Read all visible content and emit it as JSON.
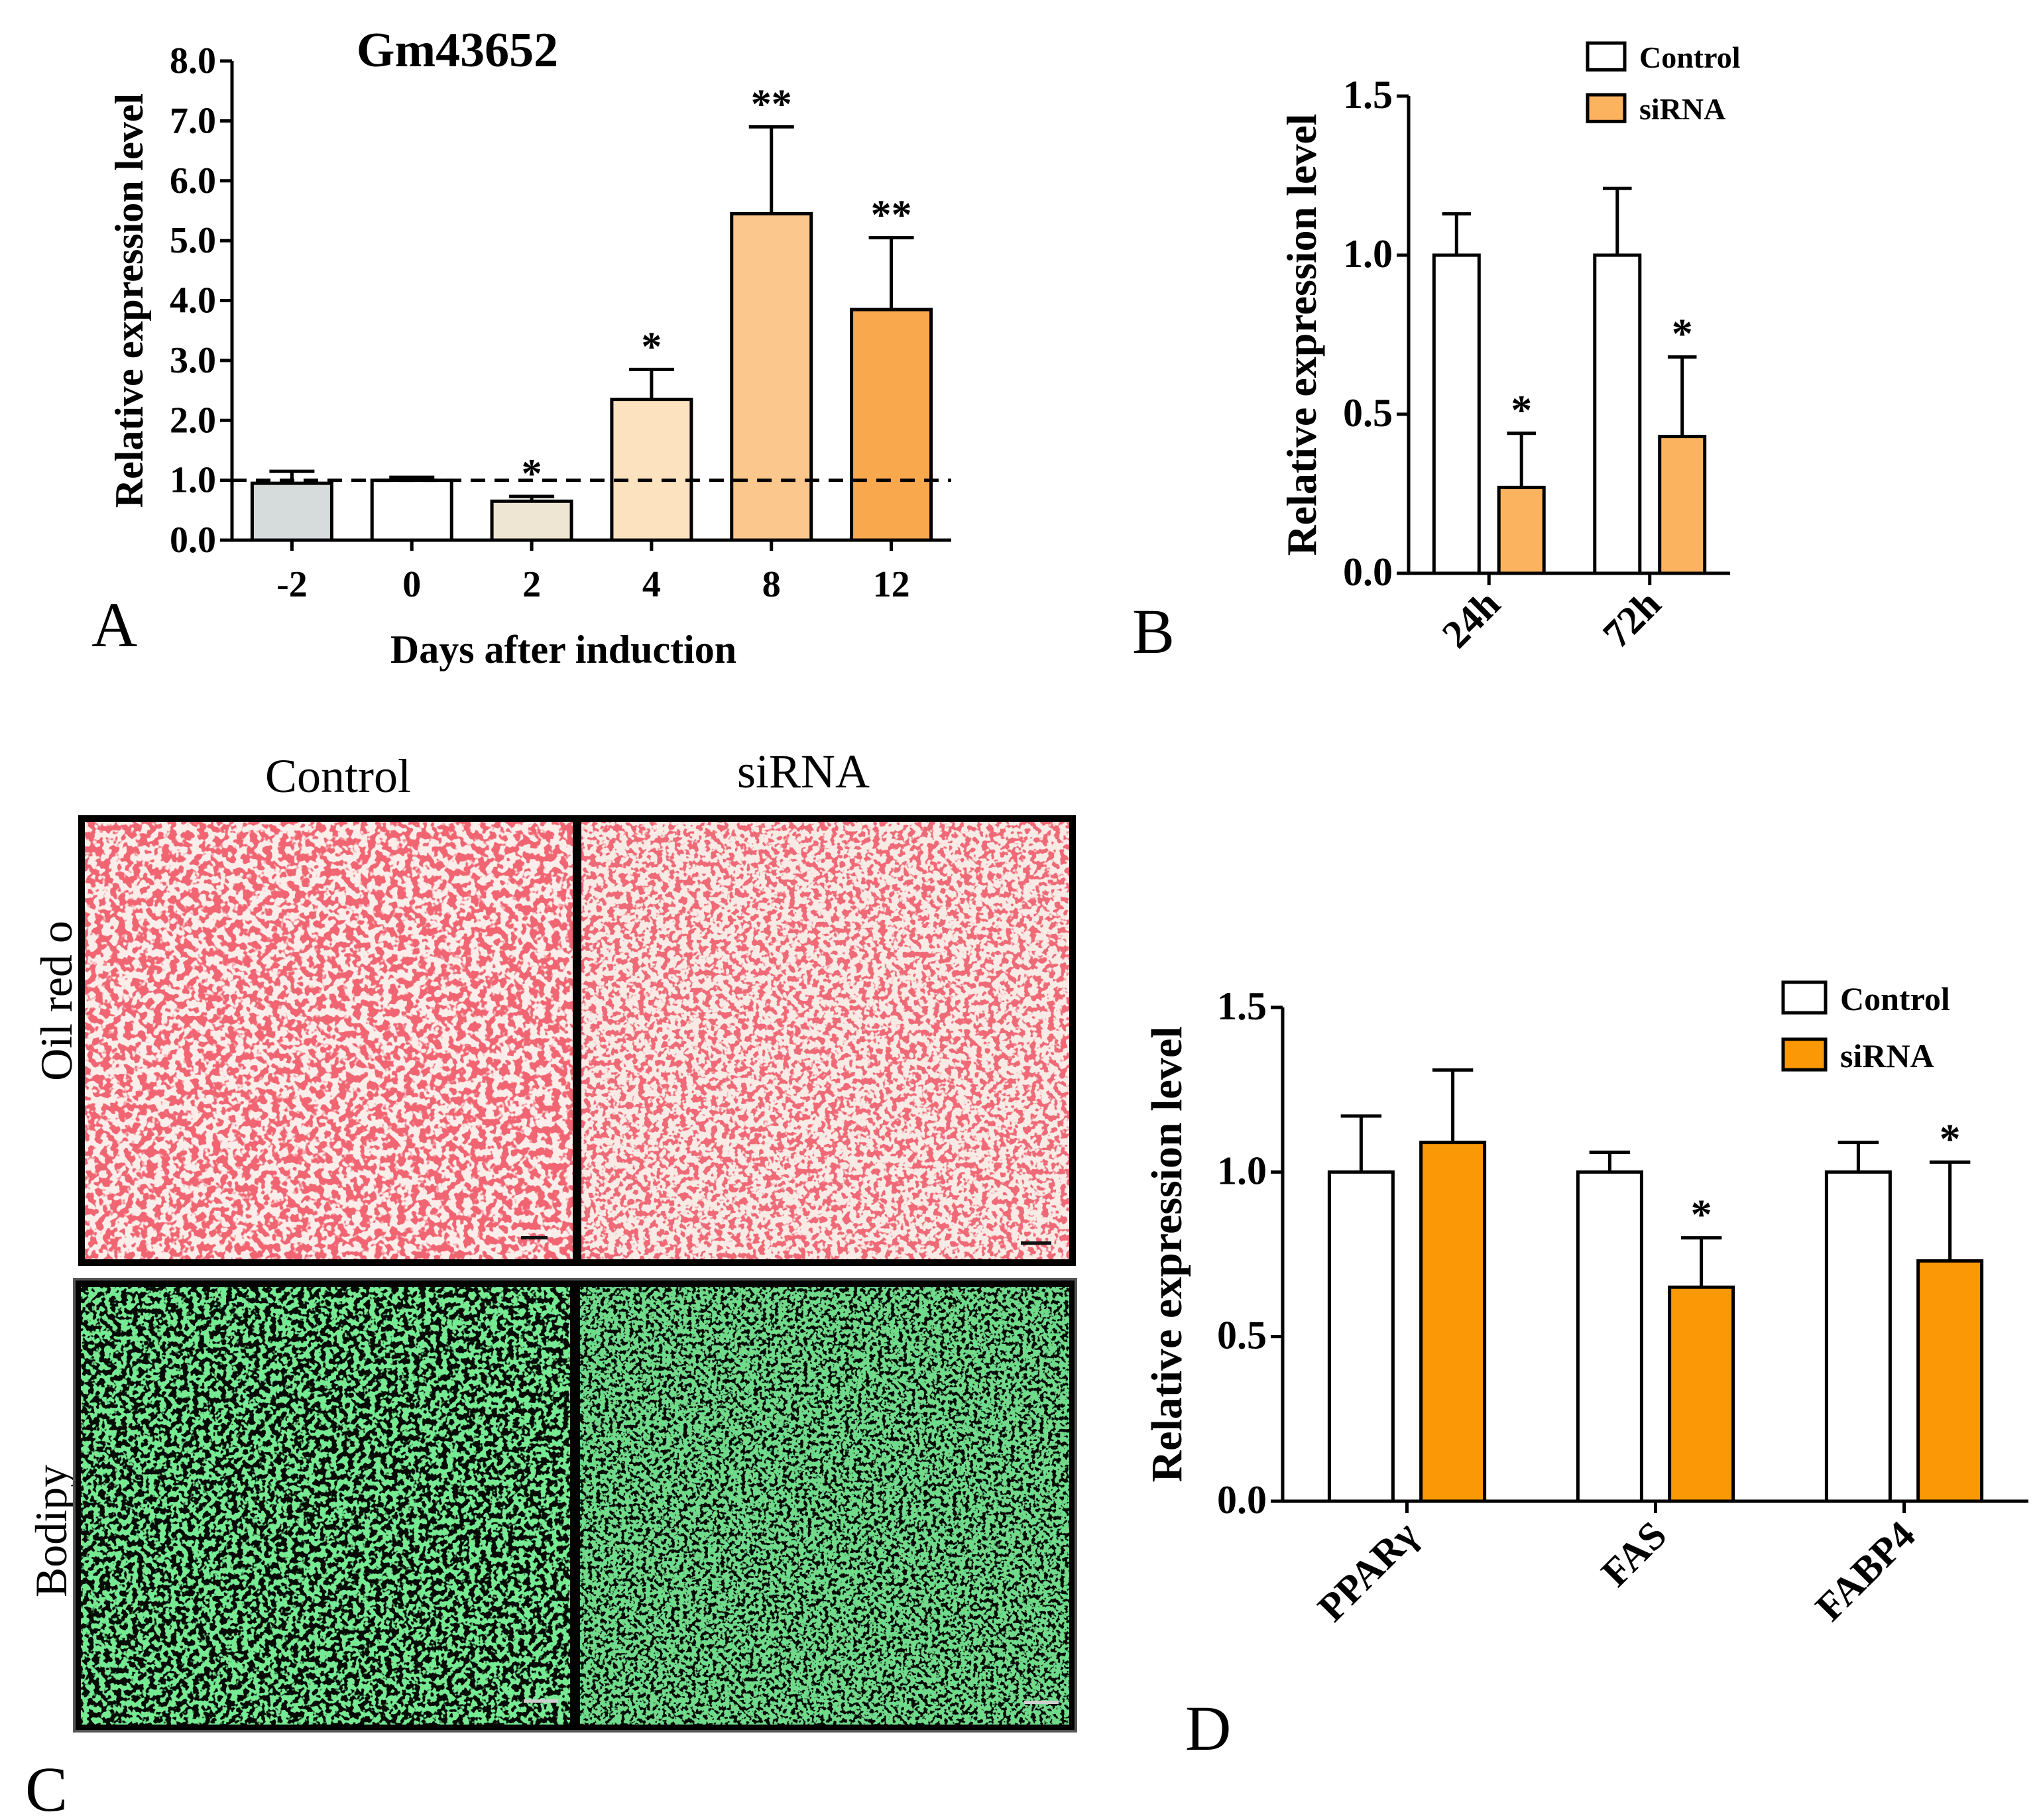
{
  "panels": {
    "A": {
      "letter": "A"
    },
    "B": {
      "letter": "B"
    },
    "C": {
      "letter": "C"
    },
    "D": {
      "letter": "D"
    }
  },
  "micrographs": {
    "col_headers": [
      "Control",
      "siRNA"
    ],
    "row_labels": [
      "Oil red o",
      "Bodipy"
    ],
    "colors": {
      "oil_bg": "#fbeeea",
      "oil_spot": "#e0202c",
      "oil_spot2": "#f06070",
      "bodipy_bg": "#060b06",
      "bodipy_spot": "#2ed14a"
    }
  },
  "chart_data": [
    {
      "type": "bar",
      "title": "Gm43652",
      "xlabel": "Days after induction",
      "ylabel": "Relative expression level",
      "categories": [
        "-2",
        "0",
        "2",
        "4",
        "8",
        "12"
      ],
      "values": [
        0.95,
        1.0,
        0.65,
        2.35,
        5.45,
        3.85
      ],
      "errors": [
        0.2,
        0.05,
        0.08,
        0.5,
        1.45,
        1.2
      ],
      "annotations": [
        "",
        "",
        "*",
        "*",
        "**",
        "**"
      ],
      "bar_colors": [
        "#d6dbdc",
        "#ffffff",
        "#efe5d3",
        "#fde2bf",
        "#fcc78c",
        "#faa84e"
      ],
      "reference_line": 1.0,
      "ylim": [
        0,
        8
      ],
      "yticks": [
        "0.0",
        "1.0",
        "2.0",
        "3.0",
        "4.0",
        "5.0",
        "6.0",
        "7.0",
        "8.0"
      ],
      "grid": false
    },
    {
      "type": "bar",
      "ylabel": "Relative expression level",
      "categories": [
        "24h",
        "72h"
      ],
      "legend_position": "top-right",
      "series": [
        {
          "name": "Control",
          "color": "#ffffff",
          "values": [
            1.0,
            1.0
          ],
          "errors": [
            0.13,
            0.21
          ],
          "annotations": [
            "",
            ""
          ]
        },
        {
          "name": "siRNA",
          "color": "#fbb35f",
          "values": [
            0.27,
            0.43
          ],
          "errors": [
            0.17,
            0.25
          ],
          "annotations": [
            "*",
            "*"
          ]
        }
      ],
      "ylim": [
        0,
        1.5
      ],
      "yticks": [
        "0.0",
        "0.5",
        "1.0",
        "1.5"
      ],
      "grid": false
    },
    {
      "type": "bar",
      "ylabel": "Relative expression level",
      "categories": [
        "PPARγ",
        "FAS",
        "FABP4"
      ],
      "legend_position": "top-right",
      "series": [
        {
          "name": "Control",
          "color": "#ffffff",
          "values": [
            1.0,
            1.0,
            1.0
          ],
          "errors": [
            0.17,
            0.06,
            0.09
          ],
          "annotations": [
            "",
            "",
            ""
          ]
        },
        {
          "name": "siRNA",
          "color": "#fb9806",
          "values": [
            1.09,
            0.65,
            0.73
          ],
          "errors": [
            0.22,
            0.15,
            0.3
          ],
          "annotations": [
            "",
            "*",
            "*"
          ]
        }
      ],
      "ylim": [
        0,
        1.5
      ],
      "yticks": [
        "0.0",
        "0.5",
        "1.0",
        "1.5"
      ],
      "grid": false
    }
  ]
}
